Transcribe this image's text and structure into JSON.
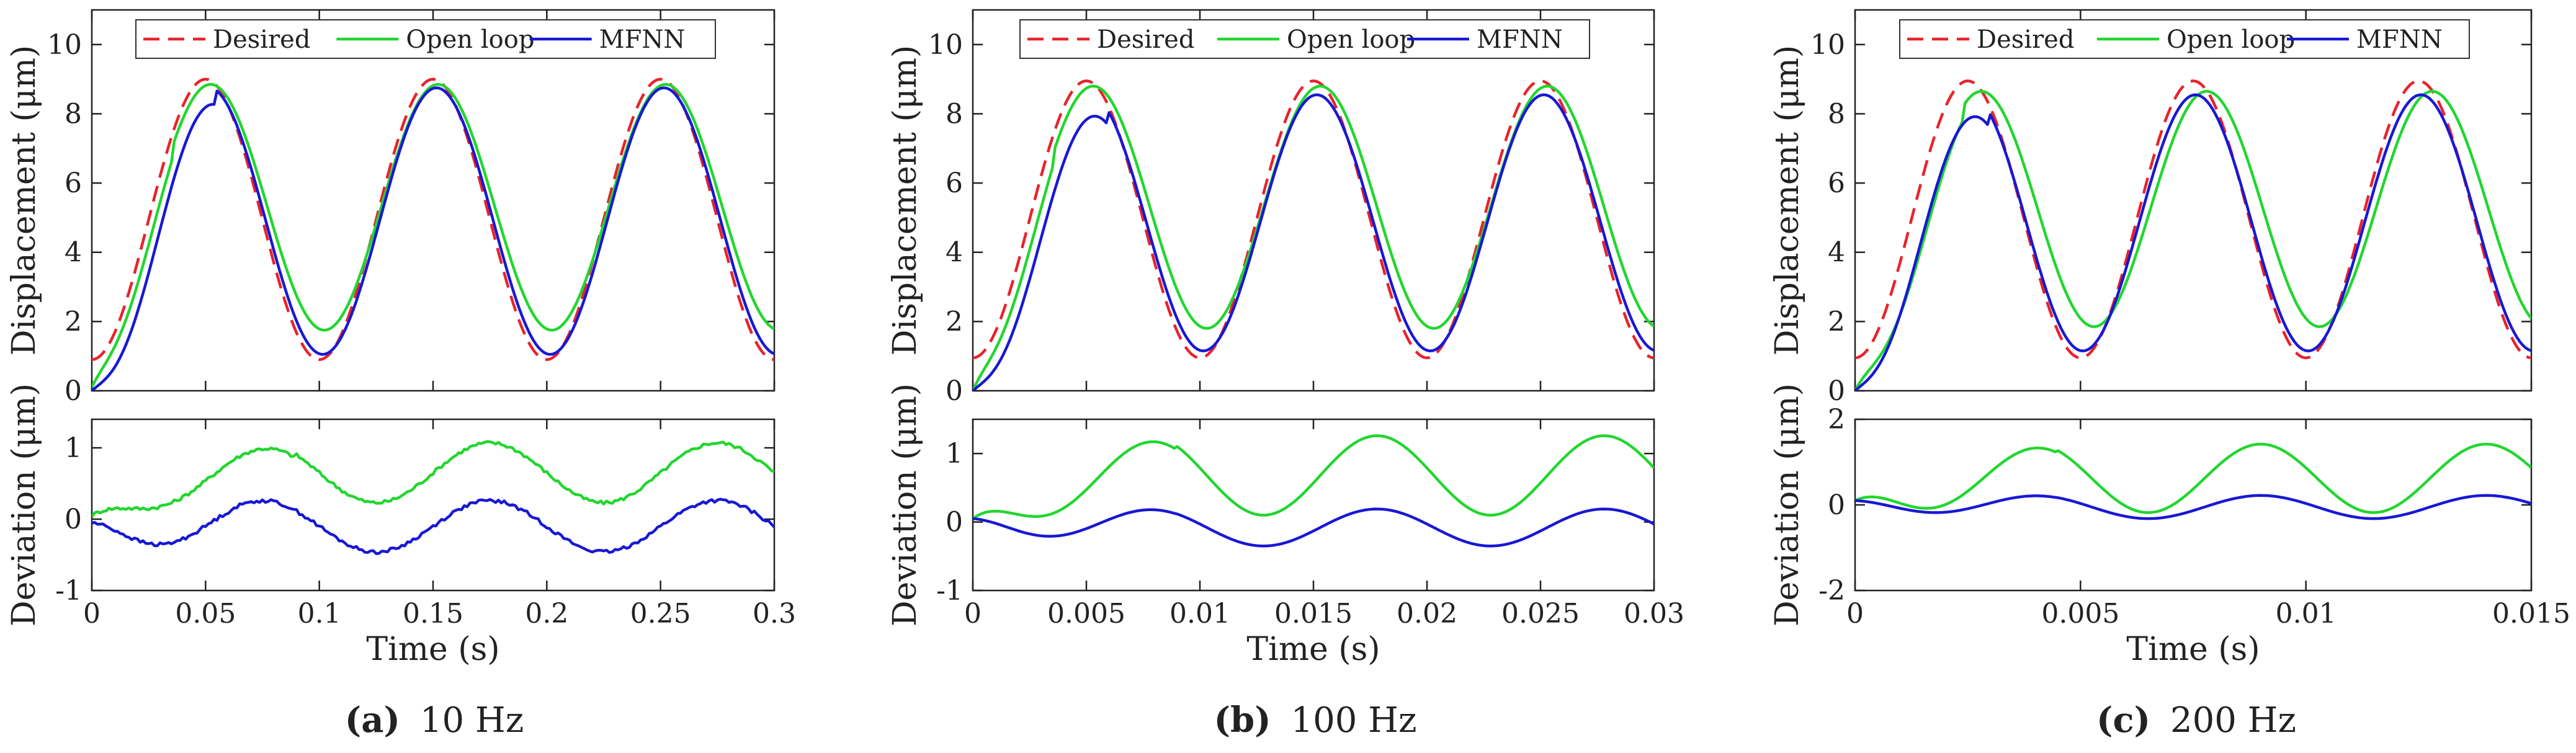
{
  "figure": {
    "panels": [
      {
        "caption_letter": "(a)",
        "caption_text": "10 Hz"
      },
      {
        "caption_letter": "(b)",
        "caption_text": "100 Hz"
      },
      {
        "caption_letter": "(c)",
        "caption_text": "200 Hz"
      }
    ]
  },
  "chart_data": [
    {
      "type": "line",
      "panel": "a",
      "subplot": "top",
      "ylabel": "Displacement (μm)",
      "xlabel": "",
      "xlim": [
        0,
        0.3
      ],
      "ylim": [
        0,
        11
      ],
      "xticks": [
        0,
        0.05,
        0.1,
        0.15,
        0.2,
        0.25,
        0.3
      ],
      "xtick_labels": [
        "",
        "",
        "",
        "",
        "",
        "",
        ""
      ],
      "yticks": [
        0,
        2,
        4,
        6,
        8,
        10
      ],
      "ytick_labels": [
        "0",
        "2",
        "4",
        "6",
        "8",
        "10"
      ],
      "legend": [
        "Desired",
        "Open loop",
        "MFNN"
      ],
      "legend_position": "top",
      "signal": {
        "period": 0.1,
        "peak_time": 0.05,
        "samples": 240
      },
      "series": [
        {
          "name": "Desired",
          "color": "#e8232b",
          "dash": true,
          "mean": 4.95,
          "amp": 4.05,
          "lag": 0.0,
          "start": 0.75,
          "settle": 0.0
        },
        {
          "name": "Open loop",
          "color": "#22d62f",
          "dash": false,
          "mean": 5.3,
          "amp": 3.55,
          "lag": 0.0022,
          "start": 0.1,
          "settle": 0.012
        },
        {
          "name": "MFNN",
          "color": "#1818d4",
          "dash": false,
          "mean": 4.9,
          "amp": 3.85,
          "lag": 0.0015,
          "start": 0.0,
          "settle": 0.018
        }
      ]
    },
    {
      "type": "line",
      "panel": "a",
      "subplot": "bottom",
      "ylabel": "Deviation (μm)",
      "xlabel": "Time (s)",
      "xlim": [
        0,
        0.3
      ],
      "ylim": [
        -1,
        1.4
      ],
      "xticks": [
        0,
        0.05,
        0.1,
        0.15,
        0.2,
        0.25,
        0.3
      ],
      "xtick_labels": [
        "0",
        "0.05",
        "0.1",
        "0.15",
        "0.2",
        "0.25",
        "0.3"
      ],
      "yticks": [
        -1,
        0,
        1
      ],
      "ytick_labels": [
        "-1",
        "0",
        "1"
      ],
      "signal": {
        "period": 0.1,
        "peak_time": 0.075,
        "samples": 240
      },
      "series": [
        {
          "name": "Open loop",
          "color": "#22d62f",
          "mean": 0.65,
          "amp": 0.42,
          "start": 0.05,
          "settle": 0.03,
          "noise": 0.025
        },
        {
          "name": "MFNN",
          "color": "#1818d4",
          "mean": -0.1,
          "amp": 0.36,
          "start": -0.05,
          "settle": 0.02,
          "noise": 0.025
        }
      ]
    },
    {
      "type": "line",
      "panel": "b",
      "subplot": "top",
      "ylabel": "Displacement (μm)",
      "xlabel": "",
      "xlim": [
        0,
        0.03
      ],
      "ylim": [
        0,
        11
      ],
      "xticks": [
        0,
        0.005,
        0.01,
        0.015,
        0.02,
        0.025,
        0.03
      ],
      "xtick_labels": [
        "",
        "",
        "",
        "",
        "",
        "",
        ""
      ],
      "yticks": [
        0,
        2,
        4,
        6,
        8,
        10
      ],
      "ytick_labels": [
        "0",
        "2",
        "4",
        "6",
        "8",
        "10"
      ],
      "legend": [
        "Desired",
        "Open loop",
        "MFNN"
      ],
      "legend_position": "top",
      "signal": {
        "period": 0.01,
        "peak_time": 0.005,
        "samples": 240
      },
      "series": [
        {
          "name": "Desired",
          "color": "#e8232b",
          "dash": true,
          "mean": 4.95,
          "amp": 4.0,
          "lag": 0.0,
          "start": 0.3,
          "settle": 0.0
        },
        {
          "name": "Open loop",
          "color": "#22d62f",
          "dash": false,
          "mean": 5.3,
          "amp": 3.5,
          "lag": 0.0003,
          "start": 0.0,
          "settle": 0.0012
        },
        {
          "name": "MFNN",
          "color": "#1818d4",
          "dash": false,
          "mean": 4.85,
          "amp": 3.7,
          "lag": 0.00015,
          "start": 0.0,
          "settle": 0.002
        }
      ]
    },
    {
      "type": "line",
      "panel": "b",
      "subplot": "bottom",
      "ylabel": "Deviation (μm)",
      "xlabel": "Time (s)",
      "xlim": [
        0,
        0.03
      ],
      "ylim": [
        -1,
        1.5
      ],
      "xticks": [
        0,
        0.005,
        0.01,
        0.015,
        0.02,
        0.025,
        0.03
      ],
      "xtick_labels": [
        "0",
        "0.005",
        "0.01",
        "0.015",
        "0.02",
        "0.025",
        "0.03"
      ],
      "yticks": [
        -1,
        0,
        1
      ],
      "ytick_labels": [
        "-1",
        "0",
        "1"
      ],
      "signal": {
        "period": 0.01,
        "peak_time": 0.0078,
        "samples": 240
      },
      "series": [
        {
          "name": "Open loop",
          "color": "#22d62f",
          "mean": 0.68,
          "amp": 0.58,
          "start": 0.05,
          "settle": 0.003,
          "noise": 0.0
        },
        {
          "name": "MFNN",
          "color": "#1818d4",
          "mean": -0.08,
          "amp": 0.27,
          "start": 0.05,
          "settle": 0.003,
          "noise": 0.0
        }
      ]
    },
    {
      "type": "line",
      "panel": "c",
      "subplot": "top",
      "ylabel": "Displacement (μm)",
      "xlabel": "",
      "xlim": [
        0,
        0.015
      ],
      "ylim": [
        0,
        11
      ],
      "xticks": [
        0,
        0.005,
        0.01,
        0.015
      ],
      "xtick_labels": [
        "",
        "",
        "",
        ""
      ],
      "yticks": [
        0,
        2,
        4,
        6,
        8,
        10
      ],
      "ytick_labels": [
        "0",
        "2",
        "4",
        "6",
        "8",
        "10"
      ],
      "legend": [
        "Desired",
        "Open loop",
        "MFNN"
      ],
      "legend_position": "top",
      "signal": {
        "period": 0.005,
        "peak_time": 0.0025,
        "samples": 240
      },
      "series": [
        {
          "name": "Desired",
          "color": "#e8232b",
          "dash": true,
          "mean": 4.95,
          "amp": 4.0,
          "lag": 0.0,
          "start": 0.2,
          "settle": 0.0
        },
        {
          "name": "Open loop",
          "color": "#22d62f",
          "dash": false,
          "mean": 5.25,
          "amp": 3.4,
          "lag": 0.0003,
          "start": 0.0,
          "settle": 0.0008
        },
        {
          "name": "MFNN",
          "color": "#1818d4",
          "dash": false,
          "mean": 4.85,
          "amp": 3.7,
          "lag": 5e-05,
          "start": 0.0,
          "settle": 0.001
        }
      ]
    },
    {
      "type": "line",
      "panel": "c",
      "subplot": "bottom",
      "ylabel": "Deviation (μm)",
      "xlabel": "Time (s)",
      "xlim": [
        0,
        0.015
      ],
      "ylim": [
        -2,
        2
      ],
      "xticks": [
        0,
        0.005,
        0.01,
        0.015
      ],
      "xtick_labels": [
        "0",
        "0.005",
        "0.01",
        "0.015"
      ],
      "yticks": [
        -2,
        0,
        2
      ],
      "ytick_labels": [
        "-2",
        "0",
        "2"
      ],
      "signal": {
        "period": 0.005,
        "peak_time": 0.004,
        "samples": 240
      },
      "series": [
        {
          "name": "Open loop",
          "color": "#22d62f",
          "mean": 0.62,
          "amp": 0.8,
          "start": 0.1,
          "settle": 0.0015,
          "noise": 0.0
        },
        {
          "name": "MFNN",
          "color": "#1818d4",
          "mean": -0.05,
          "amp": 0.27,
          "start": 0.1,
          "settle": 0.0015,
          "noise": 0.0
        }
      ]
    }
  ]
}
